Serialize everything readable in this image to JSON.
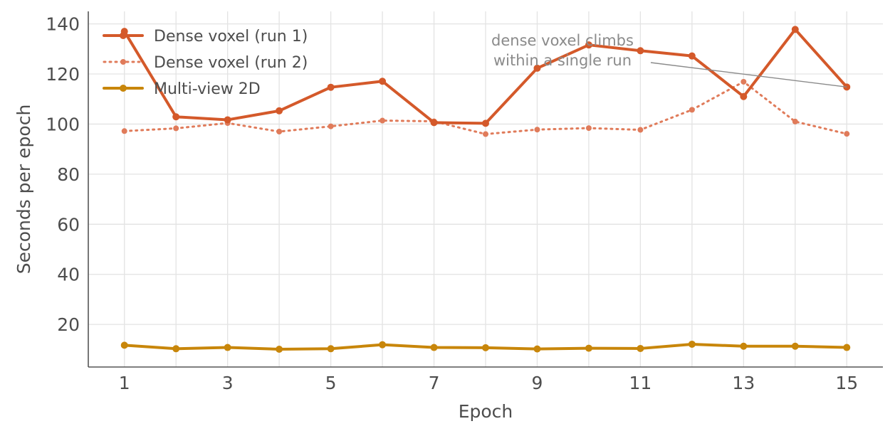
{
  "chart_data": {
    "type": "line",
    "title": "",
    "xlabel": "Epoch",
    "ylabel": "Seconds per epoch",
    "x": [
      1,
      2,
      3,
      4,
      5,
      6,
      7,
      8,
      9,
      10,
      11,
      12,
      13,
      14,
      15
    ],
    "xticks": [
      1,
      3,
      5,
      7,
      9,
      11,
      13,
      15
    ],
    "yticks": [
      20,
      40,
      60,
      80,
      100,
      120,
      140
    ],
    "xlim": [
      0.3,
      15.7
    ],
    "ylim": [
      3,
      145
    ],
    "grid": true,
    "legend_position": "top-left",
    "series": [
      {
        "name": "Dense voxel (run 1)",
        "color": "#d4592a",
        "style": "solid",
        "values": [
          137.0,
          102.9,
          101.7,
          105.3,
          114.7,
          117.1,
          100.6,
          100.3,
          122.3,
          131.6,
          129.3,
          127.2,
          111.0,
          137.8,
          114.8
        ]
      },
      {
        "name": "Dense voxel (run 2)",
        "color": "#e07b5a",
        "style": "dotted",
        "values": [
          97.2,
          98.3,
          100.4,
          97.0,
          99.1,
          101.4,
          101.1,
          96.0,
          97.8,
          98.4,
          97.7,
          105.7,
          116.9,
          101.0,
          96.1
        ]
      },
      {
        "name": "Multi-view 2D",
        "color": "#c8860a",
        "style": "solid",
        "values": [
          11.7,
          10.3,
          10.8,
          10.1,
          10.3,
          11.9,
          10.8,
          10.7,
          10.2,
          10.5,
          10.4,
          12.1,
          11.3,
          11.3,
          10.8
        ]
      }
    ],
    "annotation": {
      "text_lines": [
        "dense voxel climbs",
        "within a single run"
      ],
      "points_to": {
        "series": "Dense voxel (run 1)",
        "x": 15,
        "y": 114.8
      }
    }
  }
}
